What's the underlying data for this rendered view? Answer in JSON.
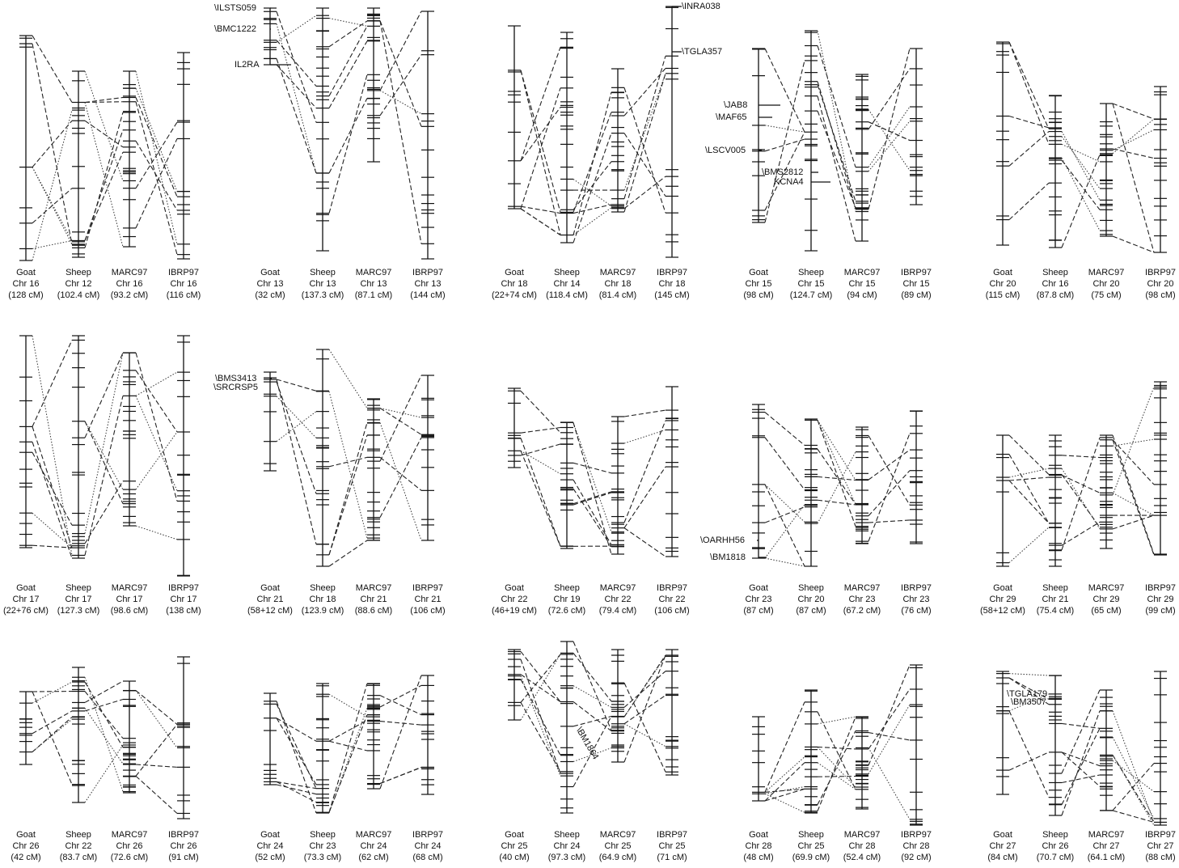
{
  "panels": [
    {
      "columns": [
        {
          "name": "Goat",
          "chr": "Chr 16",
          "length": "(128 cM)"
        },
        {
          "name": "Sheep",
          "chr": "Chr 12",
          "length": "(102.4 cM)"
        },
        {
          "name": "MARC97",
          "chr": "Chr 16",
          "length": "(93.2 cM)"
        },
        {
          "name": "IBRP97",
          "chr": "Chr 16",
          "length": "(116 cM)"
        }
      ],
      "markers": []
    },
    {
      "columns": [
        {
          "name": "Goat",
          "chr": "Chr 13",
          "length": "(32 cM)"
        },
        {
          "name": "Sheep",
          "chr": "Chr 13",
          "length": "(137.3 cM)"
        },
        {
          "name": "MARC97",
          "chr": "Chr 13",
          "length": "(87.1 cM)"
        },
        {
          "name": "IBRP97",
          "chr": "Chr 13",
          "length": "(144 cM)"
        }
      ],
      "markers": [
        {
          "label": "\\ILSTS059"
        },
        {
          "label": "\\BMC1222"
        },
        {
          "label": "IL2RA"
        }
      ]
    },
    {
      "columns": [
        {
          "name": "Goat",
          "chr": "Chr 18",
          "length": "(22+74 cM)"
        },
        {
          "name": "Sheep",
          "chr": "Chr 14",
          "length": "(118.4 cM)"
        },
        {
          "name": "MARC97",
          "chr": "Chr 18",
          "length": "(81.4 cM)"
        },
        {
          "name": "IBRP97",
          "chr": "Chr 18",
          "length": "(145 cM)"
        }
      ],
      "markers": [
        {
          "label": "\\INRA038"
        },
        {
          "label": "\\TGLA357"
        }
      ]
    },
    {
      "columns": [
        {
          "name": "Goat",
          "chr": "Chr 15",
          "length": "(98 cM)"
        },
        {
          "name": "Sheep",
          "chr": "Chr 15",
          "length": "(124.7 cM)"
        },
        {
          "name": "MARC97",
          "chr": "Chr 15",
          "length": "(94 cM)"
        },
        {
          "name": "IBRP97",
          "chr": "Chr 15",
          "length": "(89 cM)"
        }
      ],
      "markers": [
        {
          "label": "\\JAB8"
        },
        {
          "label": "\\MAF65"
        },
        {
          "label": "\\LSCV005"
        },
        {
          "label": "\\BMS2812"
        },
        {
          "label": "KCNA4"
        }
      ]
    },
    {
      "columns": [
        {
          "name": "Goat",
          "chr": "Chr 20",
          "length": "(115 cM)"
        },
        {
          "name": "Sheep",
          "chr": "Chr 16",
          "length": "(87.8 cM)"
        },
        {
          "name": "MARC97",
          "chr": "Chr 20",
          "length": "(75 cM)"
        },
        {
          "name": "IBRP97",
          "chr": "Chr 20",
          "length": "(98 cM)"
        }
      ],
      "markers": []
    },
    {
      "columns": [
        {
          "name": "Goat",
          "chr": "Chr 17",
          "length": "(22+76 cM)"
        },
        {
          "name": "Sheep",
          "chr": "Chr 17",
          "length": "(127.3 cM)"
        },
        {
          "name": "MARC97",
          "chr": "Chr 17",
          "length": "(98.6 cM)"
        },
        {
          "name": "IBRP97",
          "chr": "Chr 17",
          "length": "(138 cM)"
        }
      ],
      "markers": []
    },
    {
      "columns": [
        {
          "name": "Goat",
          "chr": "Chr 21",
          "length": "(58+12 cM)"
        },
        {
          "name": "Sheep",
          "chr": "Chr 18",
          "length": "(123.9 cM)"
        },
        {
          "name": "MARC97",
          "chr": "Chr 21",
          "length": "(88.6 cM)"
        },
        {
          "name": "IBRP97",
          "chr": "Chr 21",
          "length": "(106 cM)"
        }
      ],
      "markers": [
        {
          "label": "\\BMS3413"
        },
        {
          "label": "\\SRCRSP5"
        }
      ]
    },
    {
      "columns": [
        {
          "name": "Goat",
          "chr": "Chr 22",
          "length": "(46+19 cM)"
        },
        {
          "name": "Sheep",
          "chr": "Chr 19",
          "length": "(72.6 cM)"
        },
        {
          "name": "MARC97",
          "chr": "Chr 22",
          "length": "(79.4 cM)"
        },
        {
          "name": "IBRP97",
          "chr": "Chr 22",
          "length": "(106 cM)"
        }
      ],
      "markers": []
    },
    {
      "columns": [
        {
          "name": "Goat",
          "chr": "Chr 23",
          "length": "(87 cM)"
        },
        {
          "name": "Sheep",
          "chr": "Chr 20",
          "length": "(87 cM)"
        },
        {
          "name": "MARC97",
          "chr": "Chr 23",
          "length": "(67.2 cM)"
        },
        {
          "name": "IBRP97",
          "chr": "Chr 23",
          "length": "(76 cM)"
        }
      ],
      "markers": [
        {
          "label": "\\OARHH56"
        },
        {
          "label": "\\BM1818"
        }
      ]
    },
    {
      "columns": [
        {
          "name": "Goat",
          "chr": "Chr 29",
          "length": "(58+12 cM)"
        },
        {
          "name": "Sheep",
          "chr": "Chr 21",
          "length": "(75.4 cM)"
        },
        {
          "name": "MARC97",
          "chr": "Chr 29",
          "length": "(65 cM)"
        },
        {
          "name": "IBRP97",
          "chr": "Chr 29",
          "length": "(99 cM)"
        }
      ],
      "markers": []
    },
    {
      "columns": [
        {
          "name": "Goat",
          "chr": "Chr 26",
          "length": "(42 cM)"
        },
        {
          "name": "Sheep",
          "chr": "Chr 22",
          "length": "(83.7 cM)"
        },
        {
          "name": "MARC97",
          "chr": "Chr 26",
          "length": "(72.6 cM)"
        },
        {
          "name": "IBRP97",
          "chr": "Chr 26",
          "length": "(91 cM)"
        }
      ],
      "markers": []
    },
    {
      "columns": [
        {
          "name": "Goat",
          "chr": "Chr 24",
          "length": "(52 cM)"
        },
        {
          "name": "Sheep",
          "chr": "Chr 23",
          "length": "(73.3 cM)"
        },
        {
          "name": "MARC97",
          "chr": "Chr 24",
          "length": "(62 cM)"
        },
        {
          "name": "IBRP97",
          "chr": "Chr 24",
          "length": "(68 cM)"
        }
      ],
      "markers": []
    },
    {
      "columns": [
        {
          "name": "Goat",
          "chr": "Chr 25",
          "length": "(40 cM)"
        },
        {
          "name": "Sheep",
          "chr": "Chr 24",
          "length": "(97.3 cM)"
        },
        {
          "name": "MARC97",
          "chr": "Chr 25",
          "length": "(64.9 cM)"
        },
        {
          "name": "IBRP97",
          "chr": "Chr 25",
          "length": "(71 cM)"
        }
      ],
      "markers": [
        {
          "label": "\\BM1864"
        }
      ]
    },
    {
      "columns": [
        {
          "name": "Goat",
          "chr": "Chr 28",
          "length": "(48 cM)"
        },
        {
          "name": "Sheep",
          "chr": "Chr 25",
          "length": "(69.9 cM)"
        },
        {
          "name": "MARC97",
          "chr": "Chr 28",
          "length": "(52.4 cM)"
        },
        {
          "name": "IBRP97",
          "chr": "Chr 28",
          "length": "(92 cM)"
        }
      ],
      "markers": []
    },
    {
      "columns": [
        {
          "name": "Goat",
          "chr": "Chr 27",
          "length": "(84 cM)"
        },
        {
          "name": "Sheep",
          "chr": "Chr 26",
          "length": "(70.7 cM)"
        },
        {
          "name": "MARC97",
          "chr": "Chr 27",
          "length": "(64.1 cM)"
        },
        {
          "name": "IBRP97",
          "chr": "Chr 27",
          "length": "(88 cM)"
        }
      ],
      "markers": [
        {
          "label": "\\TGLA179"
        },
        {
          "label": "\\BM3507"
        }
      ]
    }
  ]
}
